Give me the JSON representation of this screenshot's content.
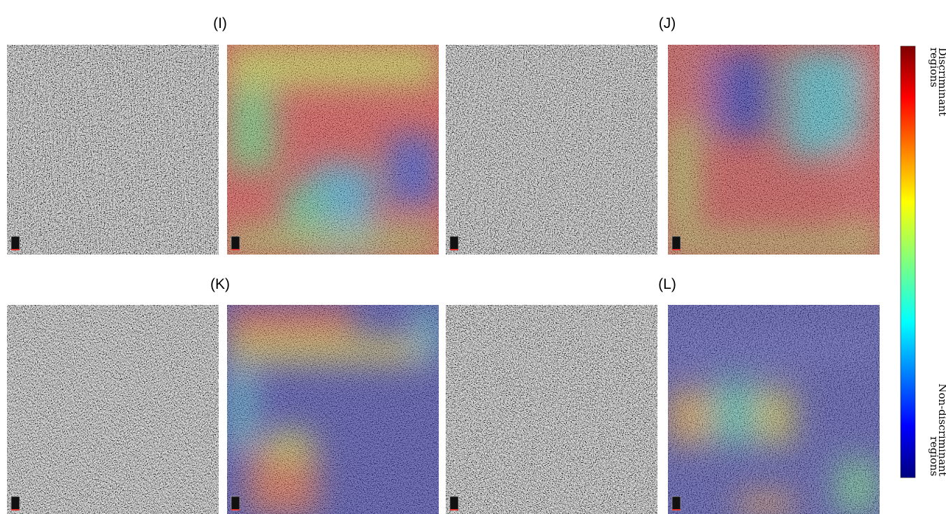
{
  "panels": [
    {
      "label": "(I)"
    },
    {
      "label": "(J)"
    },
    {
      "label": "(K)"
    },
    {
      "label": "(L)"
    }
  ],
  "colorbar": {
    "top_label": [
      "Discriminant",
      "regions"
    ],
    "bottom_label": [
      "Non-discriminant",
      "regions"
    ]
  }
}
